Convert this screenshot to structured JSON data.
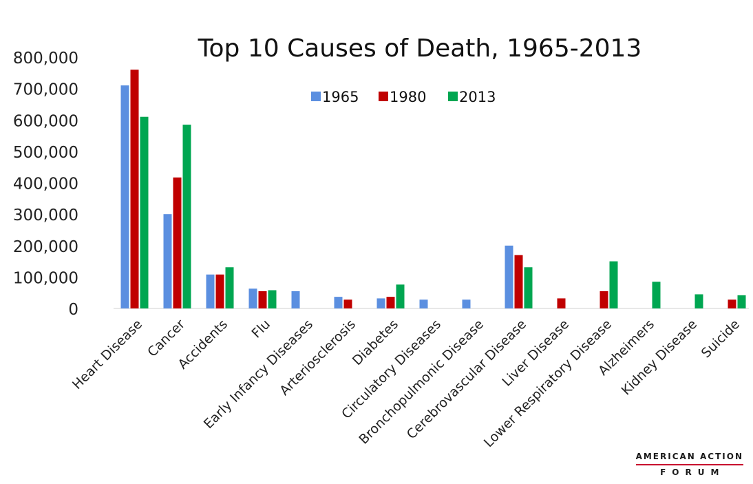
{
  "chart_data": {
    "type": "bar",
    "title": "Top 10 Causes of Death, 1965-2013",
    "xlabel": "",
    "ylabel": "",
    "ylim": [
      0,
      800000
    ],
    "yticks": [
      0,
      100000,
      200000,
      300000,
      400000,
      500000,
      600000,
      700000,
      800000
    ],
    "ytick_labels": [
      "0",
      "100,000",
      "200,000",
      "300,000",
      "400,000",
      "500,000",
      "600,000",
      "700,000",
      "800,000"
    ],
    "grid": false,
    "legend_position": "top-center",
    "categories": [
      "Heart Disease",
      "Cancer",
      "Accidents",
      "Flu",
      "Early Infancy Diseases",
      "Arteriosclerosis",
      "Diabetes",
      "Circulatory Diseases",
      "Bronchopulmonic Disease",
      "Cerebrovascular Disease",
      "Liver Disease",
      "Lower Respiratory Disease",
      "Alzheimers",
      "Kidney Disease",
      "Suicide"
    ],
    "series": [
      {
        "name": "1965",
        "color": "#5b8fe0",
        "values": [
          710000,
          300000,
          108000,
          63000,
          55000,
          37000,
          32000,
          28000,
          28000,
          200000,
          null,
          null,
          null,
          null,
          null
        ]
      },
      {
        "name": "1980",
        "color": "#c00000",
        "values": [
          760000,
          417000,
          108000,
          55000,
          null,
          28000,
          37000,
          null,
          null,
          170000,
          32000,
          55000,
          null,
          null,
          28000
        ]
      },
      {
        "name": "2013",
        "color": "#00a651",
        "values": [
          610000,
          585000,
          131000,
          58000,
          null,
          null,
          76000,
          null,
          null,
          131000,
          null,
          150000,
          85000,
          45000,
          42000
        ]
      }
    ]
  },
  "logo": {
    "top": "AMERICAN ACTION",
    "bottom": "FORUM"
  }
}
